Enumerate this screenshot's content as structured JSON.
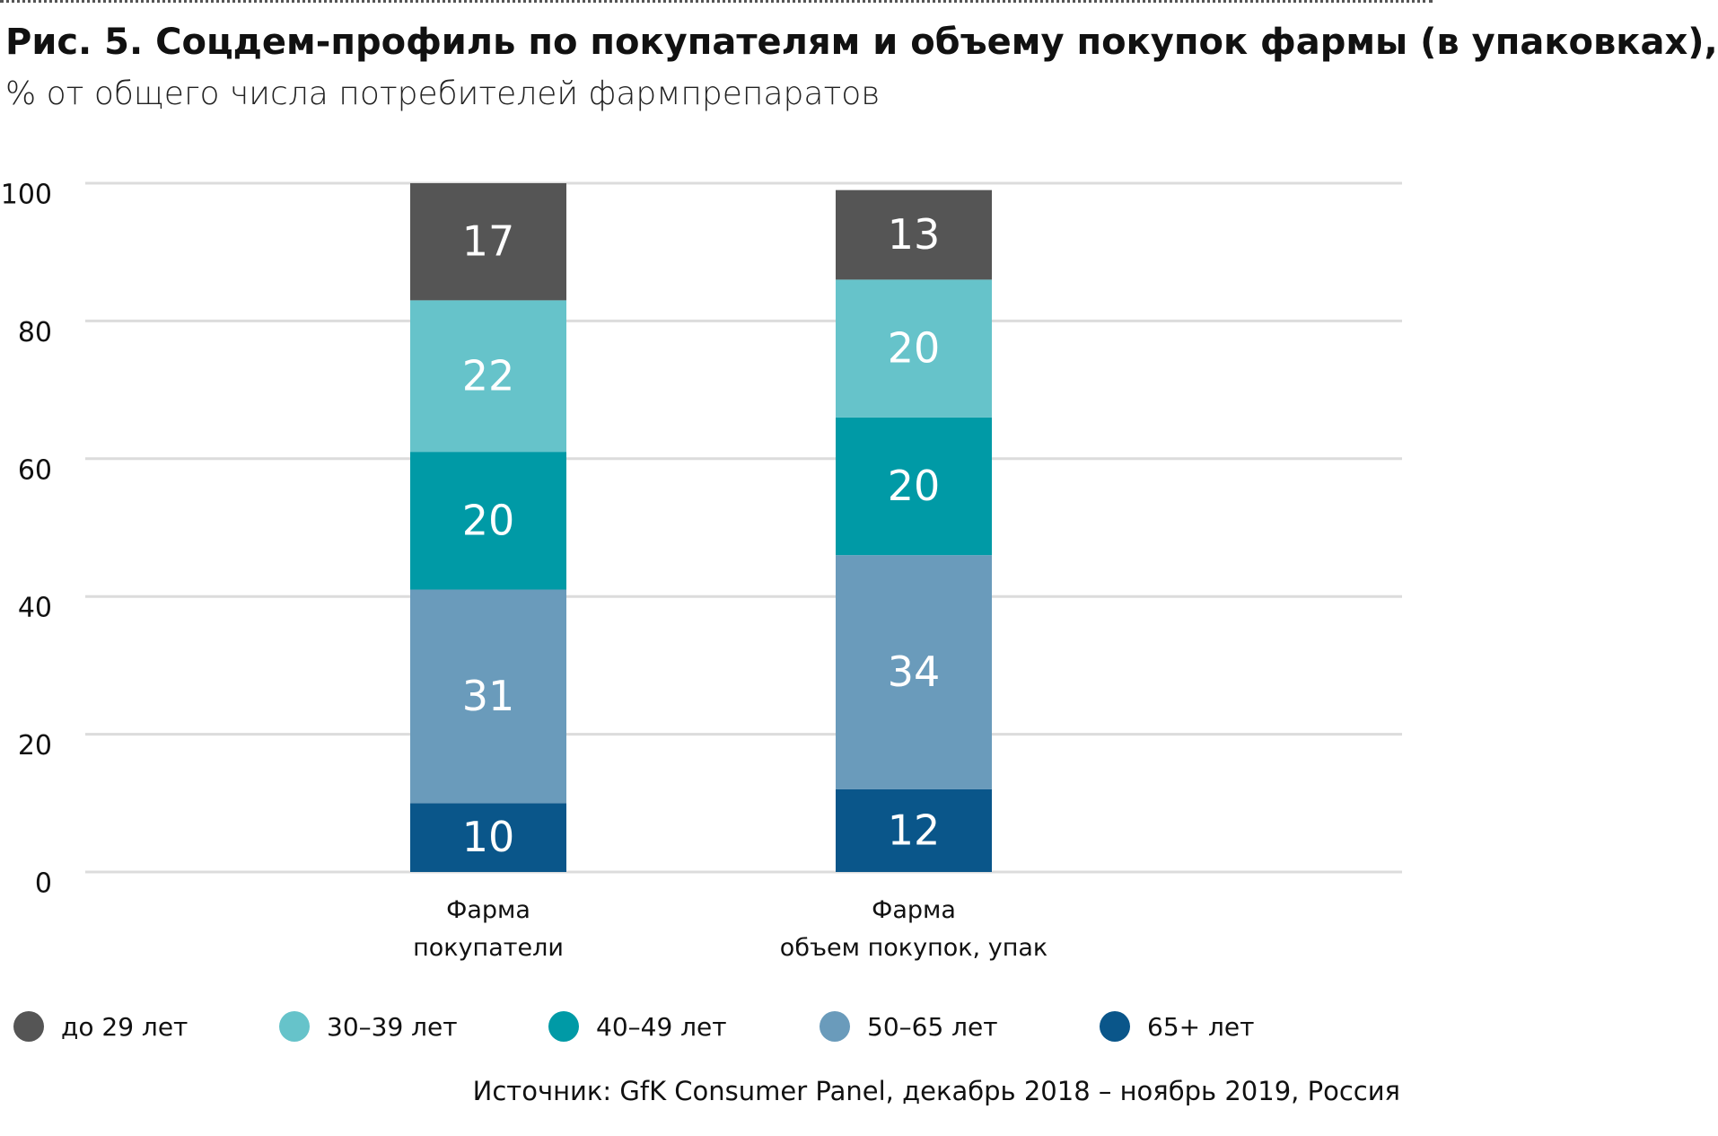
{
  "chart_data": {
    "type": "stacked_bar",
    "title": "Рис. 5. Соцдем-профиль по покупателям и объему покупок фармы (в упаковках),",
    "subtitle": "% от общего числа потребителей фармпрепаратов",
    "categories": [
      "Фарма\nпокупатели",
      "Фарма\nобъем покупок, упак"
    ],
    "series": [
      {
        "name": "до 29 лет",
        "color": "#555555",
        "values": [
          17,
          13
        ]
      },
      {
        "name": "30–39 лет",
        "color": "#66c3ca",
        "values": [
          22,
          20
        ]
      },
      {
        "name": "40–49 лет",
        "color": "#009aa6",
        "values": [
          20,
          20
        ]
      },
      {
        "name": "50–65 лет",
        "color": "#6a9bbb",
        "values": [
          31,
          34
        ]
      },
      {
        "name": "65+ лет",
        "color": "#0a568a",
        "values": [
          10,
          12
        ]
      }
    ],
    "ylim": [
      0,
      100
    ],
    "yticks": [
      0,
      20,
      40,
      60,
      80,
      100
    ],
    "grid": true,
    "source": "Источник: GfK Consumer Panel, декабрь 2018 – ноябрь 2019, Россия"
  }
}
